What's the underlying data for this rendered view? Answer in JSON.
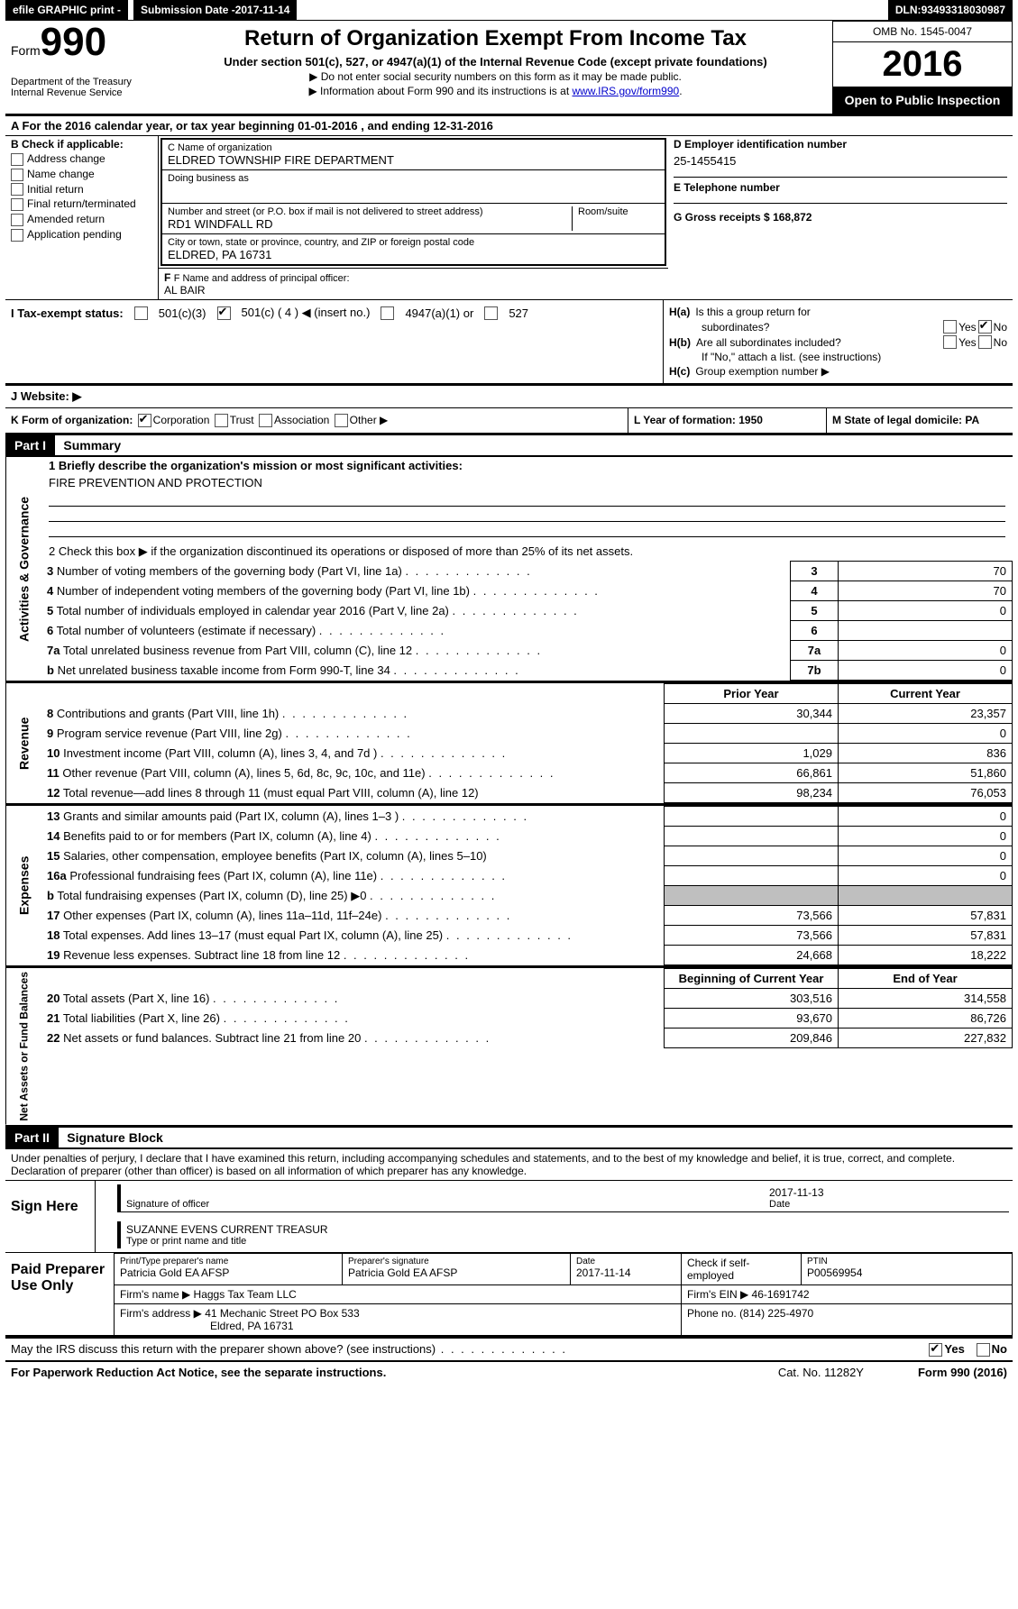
{
  "topbar": {
    "efile": "efile GRAPHIC print -",
    "submission_label": "Submission Date - ",
    "submission_date": "2017-11-14",
    "dln_label": "DLN: ",
    "dln": "93493318030987"
  },
  "header": {
    "form_word": "Form",
    "form_no": "990",
    "dept1": "Department of the Treasury",
    "dept2": "Internal Revenue Service",
    "title": "Return of Organization Exempt From Income Tax",
    "sub": "Under section 501(c), 527, or 4947(a)(1) of the Internal Revenue Code (except private foundations)",
    "note1": "▶ Do not enter social security numbers on this form as it may be made public.",
    "note2_a": "▶ Information about Form 990 and its instructions is at ",
    "note2_link": "www.IRS.gov/form990",
    "omb": "OMB No. 1545-0047",
    "year": "2016",
    "open": "Open to Public Inspection"
  },
  "rowA": "A  For the 2016 calendar year, or tax year beginning 01-01-2016   , and ending 12-31-2016",
  "boxB": {
    "title": "B Check if applicable:",
    "items": [
      "Address change",
      "Name change",
      "Initial return",
      "Final return/terminated",
      "Amended return",
      "Application pending"
    ]
  },
  "boxC": {
    "name_lbl": "C Name of organization",
    "name": "ELDRED TOWNSHIP FIRE DEPARTMENT",
    "dba_lbl": "Doing business as",
    "dba": "",
    "addr_lbl": "Number and street (or P.O. box if mail is not delivered to street address)",
    "room_lbl": "Room/suite",
    "addr": "RD1 WINDFALL RD",
    "city_lbl": "City or town, state or province, country, and ZIP or foreign postal code",
    "city": "ELDRED, PA  16731"
  },
  "boxD": {
    "ein_lbl": "D Employer identification number",
    "ein": "25-1455415",
    "tel_lbl": "E Telephone number",
    "tel": "",
    "gross_lbl": "G Gross receipts $ ",
    "gross": "168,872"
  },
  "boxF": {
    "lbl": "F Name and address of principal officer:",
    "val": "AL BAIR"
  },
  "boxH": {
    "ha": "Is this a group return for",
    "ha2": "subordinates?",
    "hb": "Are all subordinates included?",
    "hn": "If \"No,\" attach a list. (see instructions)",
    "hc": "Group exemption number ▶",
    "yes": "Yes",
    "no": "No"
  },
  "rowI": {
    "lbl": "I  Tax-exempt status:",
    "a": "501(c)(3)",
    "b": "501(c) ( 4 ) ◀ (insert no.)",
    "c": "4947(a)(1) or",
    "d": "527"
  },
  "rowJ": "J  Website: ▶",
  "rowK": {
    "k": "K Form of organization:",
    "corp": "Corporation",
    "trust": "Trust",
    "assoc": "Association",
    "other": "Other ▶",
    "l": "L Year of formation: 1950",
    "m": "M State of legal domicile: PA"
  },
  "part1": {
    "head": "Part I",
    "title": "Summary",
    "vlabel": "Activities & Governance",
    "l1": "1 Briefly describe the organization's mission or most significant activities:",
    "l1v": "FIRE PREVENTION AND PROTECTION",
    "l2": "2  Check this box ▶        if the organization discontinued its operations or disposed of more than 25% of its net assets.",
    "rows_gov": [
      {
        "n": "3",
        "d": "Number of voting members of the governing body (Part VI, line 1a)",
        "rn": "3",
        "v": "70"
      },
      {
        "n": "4",
        "d": "Number of independent voting members of the governing body (Part VI, line 1b)",
        "rn": "4",
        "v": "70"
      },
      {
        "n": "5",
        "d": "Total number of individuals employed in calendar year 2016 (Part V, line 2a)",
        "rn": "5",
        "v": "0"
      },
      {
        "n": "6",
        "d": "Total number of volunteers (estimate if necessary)",
        "rn": "6",
        "v": ""
      },
      {
        "n": "7a",
        "d": "Total unrelated business revenue from Part VIII, column (C), line 12",
        "rn": "7a",
        "v": "0"
      },
      {
        "n": "b",
        "d": "Net unrelated business taxable income from Form 990-T, line 34",
        "rn": "7b",
        "v": "0"
      }
    ]
  },
  "revenue": {
    "vlabel": "Revenue",
    "h1": "Prior Year",
    "h2": "Current Year",
    "rows": [
      {
        "n": "8",
        "d": "Contributions and grants (Part VIII, line 1h)",
        "p": "30,344",
        "c": "23,357"
      },
      {
        "n": "9",
        "d": "Program service revenue (Part VIII, line 2g)",
        "p": "",
        "c": "0"
      },
      {
        "n": "10",
        "d": "Investment income (Part VIII, column (A), lines 3, 4, and 7d )",
        "p": "1,029",
        "c": "836"
      },
      {
        "n": "11",
        "d": "Other revenue (Part VIII, column (A), lines 5, 6d, 8c, 9c, 10c, and 11e)",
        "p": "66,861",
        "c": "51,860"
      },
      {
        "n": "12",
        "d": "Total revenue—add lines 8 through 11 (must equal Part VIII, column (A), line 12)",
        "p": "98,234",
        "c": "76,053"
      }
    ]
  },
  "expenses": {
    "vlabel": "Expenses",
    "rows": [
      {
        "n": "13",
        "d": "Grants and similar amounts paid (Part IX, column (A), lines 1–3 )",
        "p": "",
        "c": "0"
      },
      {
        "n": "14",
        "d": "Benefits paid to or for members (Part IX, column (A), line 4)",
        "p": "",
        "c": "0"
      },
      {
        "n": "15",
        "d": "Salaries, other compensation, employee benefits (Part IX, column (A), lines 5–10)",
        "p": "",
        "c": "0"
      },
      {
        "n": "16a",
        "d": "Professional fundraising fees (Part IX, column (A), line 11e)",
        "p": "",
        "c": "0"
      },
      {
        "n": "b",
        "d": "Total fundraising expenses (Part IX, column (D), line 25) ▶0",
        "p": "__SHADE__",
        "c": "__SHADE__"
      },
      {
        "n": "17",
        "d": "Other expenses (Part IX, column (A), lines 11a–11d, 11f–24e)",
        "p": "73,566",
        "c": "57,831"
      },
      {
        "n": "18",
        "d": "Total expenses. Add lines 13–17 (must equal Part IX, column (A), line 25)",
        "p": "73,566",
        "c": "57,831"
      },
      {
        "n": "19",
        "d": "Revenue less expenses. Subtract line 18 from line 12",
        "p": "24,668",
        "c": "18,222"
      }
    ]
  },
  "netassets": {
    "vlabel": "Net Assets or Fund Balances",
    "h1": "Beginning of Current Year",
    "h2": "End of Year",
    "rows": [
      {
        "n": "20",
        "d": "Total assets (Part X, line 16)",
        "p": "303,516",
        "c": "314,558"
      },
      {
        "n": "21",
        "d": "Total liabilities (Part X, line 26)",
        "p": "93,670",
        "c": "86,726"
      },
      {
        "n": "22",
        "d": "Net assets or fund balances. Subtract line 21 from line 20",
        "p": "209,846",
        "c": "227,832"
      }
    ]
  },
  "part2": {
    "head": "Part II",
    "title": "Signature Block",
    "declaration": "Under penalties of perjury, I declare that I have examined this return, including accompanying schedules and statements, and to the best of my knowledge and belief, it is true, correct, and complete. Declaration of preparer (other than officer) is based on all information of which preparer has any knowledge.",
    "sign_here": "Sign Here",
    "sig_date": "2017-11-13",
    "sig_lbl": "Signature of officer",
    "date_lbl": "Date",
    "name": "SUZANNE EVENS CURRENT TREASUR",
    "name_lbl": "Type or print name and title",
    "paid": "Paid Preparer Use Only",
    "prep_name_lbl": "Print/Type preparer's name",
    "prep_name": "Patricia Gold EA AFSP",
    "prep_sig_lbl": "Preparer's signature",
    "prep_sig": "Patricia Gold EA AFSP",
    "prep_date_lbl": "Date",
    "prep_date": "2017-11-14",
    "check_lbl": "Check         if self-employed",
    "ptin_lbl": "PTIN",
    "ptin": "P00569954",
    "firm_name_lbl": "Firm's name      ▶ ",
    "firm_name": "Haggs Tax Team LLC",
    "firm_ein_lbl": "Firm's EIN ▶ ",
    "firm_ein": "46-1691742",
    "firm_addr_lbl": "Firm's address ▶ ",
    "firm_addr": "41 Mechanic Street PO Box 533",
    "firm_city": "Eldred, PA  16731",
    "phone_lbl": "Phone no. ",
    "phone": "(814) 225-4970"
  },
  "footer": {
    "q": "May the IRS discuss this return with the preparer shown above? (see instructions)",
    "yes": "Yes",
    "no": "No",
    "pra": "For Paperwork Reduction Act Notice, see the separate instructions.",
    "cat": "Cat. No. 11282Y",
    "form": "Form 990 (2016)"
  }
}
